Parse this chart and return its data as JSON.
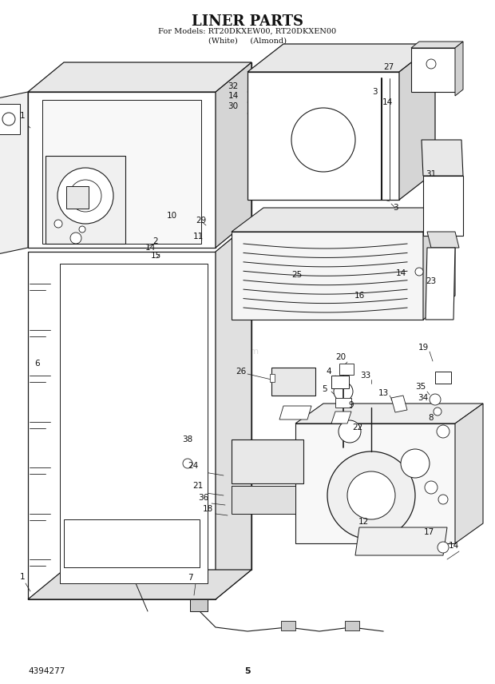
{
  "title": "LINER PARTS",
  "subtitle1": "For Models: RT20DKXEW00, RT20DKXEN00",
  "subtitle2": "(White)     (Almond)",
  "bg_color": "#ffffff",
  "line_color": "#1a1a1a",
  "text_color": "#111111",
  "page_number": "5",
  "doc_number": "4394277",
  "fig_width": 6.2,
  "fig_height": 8.56,
  "dpi": 100
}
